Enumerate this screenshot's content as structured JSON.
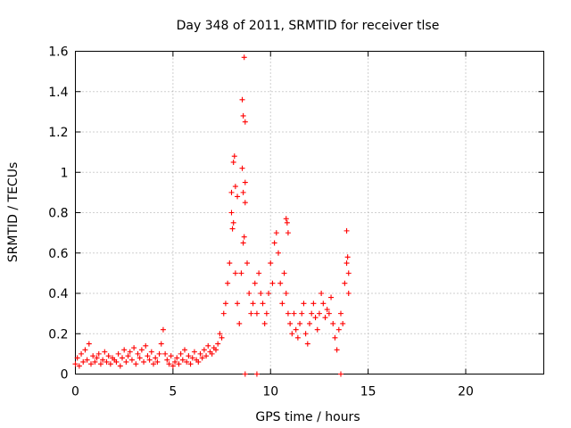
{
  "chart_data": {
    "type": "scatter",
    "title": "Day 348 of 2011, SRMTID for receiver tlse",
    "xlabel": "GPS time / hours",
    "ylabel": "SRMTID / TECUs",
    "xlim": [
      0,
      24
    ],
    "ylim": [
      0,
      1.6
    ],
    "xticks": [
      0,
      5,
      10,
      15,
      20
    ],
    "xtick_labels": [
      "0",
      "5",
      "10",
      "15",
      "20"
    ],
    "yticks": [
      0,
      0.2,
      0.4,
      0.6,
      0.8,
      1.0,
      1.2,
      1.4,
      1.6
    ],
    "ytick_labels": [
      "0",
      "0.2",
      "0.4",
      "0.6",
      "0.8",
      "1",
      "1.2",
      "1.4",
      "1.6"
    ],
    "grid": true,
    "marker": "plus",
    "color": "#ff0000",
    "series": [
      {
        "name": "SRMTID",
        "x": [
          0.0,
          0.1,
          0.2,
          0.3,
          0.4,
          0.5,
          0.6,
          0.7,
          0.8,
          0.9,
          1.0,
          1.1,
          1.2,
          1.3,
          1.4,
          1.5,
          1.6,
          1.7,
          1.8,
          1.9,
          2.0,
          2.1,
          2.2,
          2.3,
          2.4,
          2.5,
          2.6,
          2.7,
          2.8,
          2.9,
          3.0,
          3.1,
          3.2,
          3.3,
          3.4,
          3.5,
          3.6,
          3.7,
          3.8,
          3.9,
          4.0,
          4.1,
          4.2,
          4.3,
          4.4,
          4.5,
          4.6,
          4.7,
          4.8,
          4.9,
          5.0,
          5.1,
          5.2,
          5.3,
          5.4,
          5.5,
          5.6,
          5.7,
          5.8,
          5.9,
          6.0,
          6.1,
          6.2,
          6.3,
          6.4,
          6.5,
          6.6,
          6.7,
          6.8,
          6.9,
          7.0,
          7.1,
          7.2,
          7.3,
          7.4,
          7.5,
          7.6,
          7.7,
          7.8,
          7.9,
          8.0,
          8.1,
          8.2,
          8.3,
          8.4,
          8.5,
          8.6,
          8.7,
          8.8,
          8.9,
          9.0,
          9.1,
          9.2,
          9.3,
          9.4,
          9.5,
          9.6,
          9.7,
          9.8,
          9.9,
          10.0,
          10.1,
          10.2,
          10.3,
          10.4,
          10.5,
          10.6,
          10.7,
          10.8,
          10.9,
          11.0,
          11.1,
          11.2,
          11.3,
          11.4,
          11.5,
          11.6,
          11.7,
          11.8,
          11.9,
          12.0,
          12.1,
          12.2,
          12.3,
          12.4,
          12.5,
          12.6,
          12.7,
          12.8,
          12.9,
          13.0,
          13.1,
          13.2,
          13.3,
          13.4,
          13.5,
          13.6,
          13.7,
          13.8,
          13.9,
          14.0
        ],
        "y": [
          0.05,
          0.08,
          0.04,
          0.1,
          0.06,
          0.12,
          0.07,
          0.15,
          0.05,
          0.09,
          0.06,
          0.08,
          0.1,
          0.05,
          0.07,
          0.11,
          0.06,
          0.09,
          0.05,
          0.08,
          0.07,
          0.06,
          0.1,
          0.04,
          0.08,
          0.12,
          0.06,
          0.09,
          0.11,
          0.07,
          0.13,
          0.05,
          0.1,
          0.08,
          0.12,
          0.06,
          0.14,
          0.09,
          0.07,
          0.11,
          0.05,
          0.08,
          0.06,
          0.1,
          0.15,
          0.22,
          0.1,
          0.07,
          0.05,
          0.09,
          0.04,
          0.06,
          0.08,
          0.05,
          0.1,
          0.07,
          0.12,
          0.06,
          0.09,
          0.05,
          0.08,
          0.11,
          0.07,
          0.06,
          0.1,
          0.08,
          0.12,
          0.09,
          0.14,
          0.11,
          0.1,
          0.13,
          0.12,
          0.15,
          0.2,
          0.18,
          0.3,
          0.35,
          0.45,
          0.55,
          0.9,
          0.75,
          0.5,
          0.35,
          0.25,
          0.5,
          0.65,
          0.85,
          0.55,
          0.4,
          0.3,
          0.35,
          0.45,
          0.3,
          0.5,
          0.4,
          0.35,
          0.25,
          0.3,
          0.4,
          0.55,
          0.45,
          0.65,
          0.7,
          0.6,
          0.45,
          0.35,
          0.5,
          0.4,
          0.3,
          0.25,
          0.2,
          0.3,
          0.22,
          0.18,
          0.25,
          0.3,
          0.35,
          0.2,
          0.15,
          0.25,
          0.3,
          0.35,
          0.28,
          0.22,
          0.3,
          0.4,
          0.35,
          0.28,
          0.32,
          0.3,
          0.38,
          0.25,
          0.18,
          0.12,
          0.22,
          0.3,
          0.25,
          0.45,
          0.55,
          0.4
        ]
      }
    ],
    "extra_points": [
      {
        "x": 8.1,
        "y": 1.05
      },
      {
        "x": 8.15,
        "y": 1.08
      },
      {
        "x": 8.2,
        "y": 0.93
      },
      {
        "x": 8.0,
        "y": 0.8
      },
      {
        "x": 8.05,
        "y": 0.72
      },
      {
        "x": 8.3,
        "y": 0.88
      },
      {
        "x": 8.65,
        "y": 1.57
      },
      {
        "x": 8.55,
        "y": 1.36
      },
      {
        "x": 8.6,
        "y": 1.28
      },
      {
        "x": 8.7,
        "y": 1.25
      },
      {
        "x": 8.6,
        "y": 0.9
      },
      {
        "x": 8.65,
        "y": 0.68
      },
      {
        "x": 8.55,
        "y": 1.02
      },
      {
        "x": 8.7,
        "y": 0.95
      },
      {
        "x": 10.8,
        "y": 0.77
      },
      {
        "x": 10.85,
        "y": 0.75
      },
      {
        "x": 10.9,
        "y": 0.7
      },
      {
        "x": 13.9,
        "y": 0.71
      },
      {
        "x": 13.95,
        "y": 0.58
      },
      {
        "x": 14.0,
        "y": 0.5
      },
      {
        "x": 8.7,
        "y": 0.0
      },
      {
        "x": 9.3,
        "y": 0.0
      },
      {
        "x": 13.6,
        "y": 0.0
      }
    ]
  }
}
